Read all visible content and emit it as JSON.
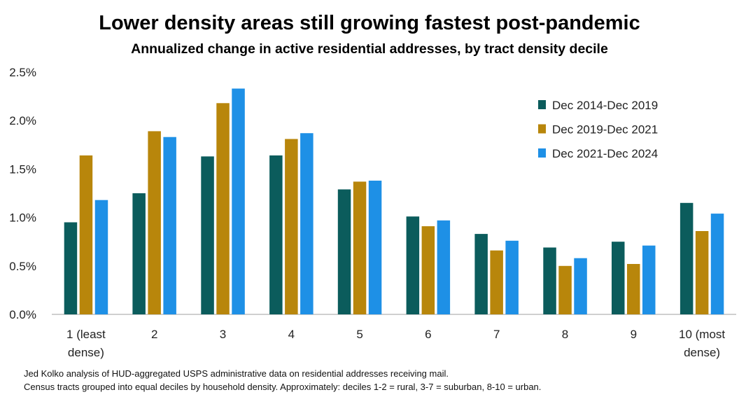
{
  "chart_data": {
    "type": "bar",
    "title": "Lower density areas still growing fastest post-pandemic",
    "subtitle": "Annualized change in active residential addresses, by tract density decile",
    "categories": [
      "1 (least dense)",
      "2",
      "3",
      "4",
      "5",
      "6",
      "7",
      "8",
      "9",
      "10 (most dense)"
    ],
    "category_lines": [
      [
        "1 (least",
        "dense)"
      ],
      [
        "2"
      ],
      [
        "3"
      ],
      [
        "4"
      ],
      [
        "5"
      ],
      [
        "6"
      ],
      [
        "7"
      ],
      [
        "8"
      ],
      [
        "9"
      ],
      [
        "10 (most",
        "dense)"
      ]
    ],
    "series": [
      {
        "name": "Dec 2014-Dec 2019",
        "color": "#0b5c5c",
        "values": [
          0.95,
          1.25,
          1.63,
          1.64,
          1.29,
          1.01,
          0.83,
          0.69,
          0.75,
          1.15
        ]
      },
      {
        "name": "Dec 2019-Dec 2021",
        "color": "#b8860b",
        "values": [
          1.64,
          1.89,
          2.18,
          1.81,
          1.37,
          0.91,
          0.66,
          0.5,
          0.52,
          0.86
        ]
      },
      {
        "name": "Dec 2021-Dec 2024",
        "color": "#1e90e6",
        "values": [
          1.18,
          1.83,
          2.33,
          1.87,
          1.38,
          0.97,
          0.76,
          0.58,
          0.71,
          1.04
        ]
      }
    ],
    "ylim": [
      0,
      2.5
    ],
    "yticks": [
      0,
      0.5,
      1.0,
      1.5,
      2.0,
      2.5
    ],
    "ytick_labels": [
      "0.0%",
      "0.5%",
      "1.0%",
      "1.5%",
      "2.0%",
      "2.5%"
    ],
    "xlabel": "",
    "ylabel": "",
    "grid": false,
    "legend_position": "top-right"
  },
  "notes": [
    "Jed Kolko analysis of HUD-aggregated USPS administrative data on residential addresses receiving mail.",
    "Census tracts grouped into equal deciles by household density. Approximately: deciles 1-2 = rural, 3-7 = suburban, 8-10 = urban."
  ]
}
